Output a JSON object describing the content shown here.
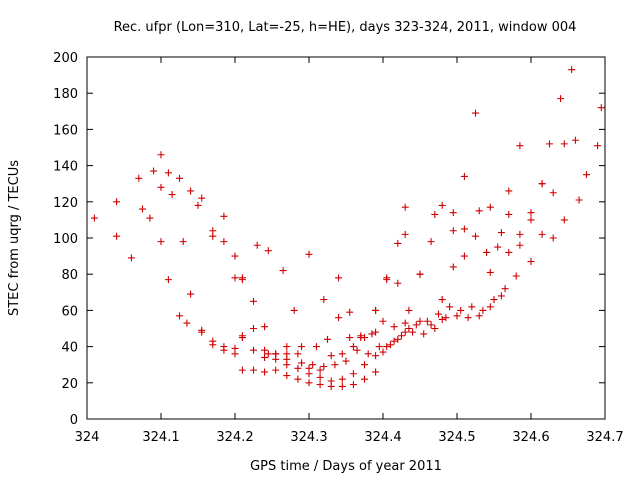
{
  "chart_data": {
    "type": "scatter",
    "title": "Rec. ufpr (Lon=310, Lat=-25, h=HE), days 323-324, 2011, window 004",
    "xlabel": "GPS time / Days of year 2011",
    "ylabel": "STEC from uqrg / TECUs",
    "xlim": [
      324,
      324.7
    ],
    "ylim": [
      0,
      200
    ],
    "xticks": [
      "324",
      "324.1",
      "324.2",
      "324.3",
      "324.4",
      "324.5",
      "324.6",
      "324.7"
    ],
    "yticks": [
      "0",
      "20",
      "40",
      "60",
      "80",
      "100",
      "120",
      "140",
      "160",
      "180",
      "200"
    ],
    "grid": false,
    "marker": "plus",
    "color": "#d00000",
    "series": [
      {
        "x": [
          324.01,
          324.04,
          324.06,
          324.075,
          324.09,
          324.1,
          324.11,
          324.125,
          324.14,
          324.155,
          324.17,
          324.185,
          324.2,
          324.21,
          324.23,
          324.245,
          324.265,
          324.3
        ],
        "y": [
          111,
          120,
          89,
          116,
          137,
          146,
          136,
          133,
          126,
          122,
          104,
          112,
          90,
          77,
          96,
          93,
          82,
          91
        ]
      },
      {
        "x": [
          324.04,
          324.07,
          324.085,
          324.1,
          324.115,
          324.13,
          324.15,
          324.17,
          324.185,
          324.2,
          324.21,
          324.225,
          324.245,
          324.28
        ],
        "y": [
          101,
          133,
          111,
          128,
          124,
          98,
          118,
          101,
          98,
          78,
          78,
          65,
          36,
          60
        ]
      },
      {
        "x": [
          324.1,
          324.11,
          324.125,
          324.14,
          324.155,
          324.17,
          324.185,
          324.2,
          324.21,
          324.225,
          324.24,
          324.255,
          324.27,
          324.29,
          324.31,
          324.325,
          324.34,
          324.355
        ],
        "y": [
          98,
          77,
          57,
          69,
          49,
          43,
          40,
          39,
          46,
          50,
          51,
          36,
          40,
          40,
          40,
          44,
          78,
          59
        ]
      },
      {
        "x": [
          324.135,
          324.155,
          324.17,
          324.185,
          324.2,
          324.21,
          324.225,
          324.24,
          324.255,
          324.27,
          324.285,
          324.3,
          324.315,
          324.33,
          324.345,
          324.36,
          324.375,
          324.39
        ],
        "y": [
          53,
          48,
          41,
          38,
          36,
          27,
          27,
          26,
          27,
          24,
          22,
          20,
          19,
          18,
          18,
          19,
          22,
          26
        ]
      },
      {
        "x": [
          324.21,
          324.225,
          324.24,
          324.255,
          324.27,
          324.285,
          324.3,
          324.315,
          324.33,
          324.345,
          324.36,
          324.375,
          324.39,
          324.4,
          324.415,
          324.43
        ],
        "y": [
          45,
          38,
          34,
          33,
          30,
          28,
          25,
          23,
          21,
          22,
          25,
          30,
          35,
          37,
          43,
          48
        ]
      },
      {
        "x": [
          324.24,
          324.255,
          324.27,
          324.285,
          324.3,
          324.315,
          324.33,
          324.345,
          324.36,
          324.375,
          324.39,
          324.405,
          324.42,
          324.435,
          324.45,
          324.465,
          324.48
        ],
        "y": [
          38,
          36,
          36,
          36,
          28,
          27,
          35,
          36,
          40,
          45,
          48,
          40,
          44,
          50,
          54,
          52,
          55
        ]
      },
      {
        "x": [
          324.27,
          324.29,
          324.305,
          324.32,
          324.335,
          324.35,
          324.365,
          324.38,
          324.395,
          324.41,
          324.425,
          324.44,
          324.455,
          324.47,
          324.485,
          324.5,
          324.515,
          324.53,
          324.545,
          324.56
        ],
        "y": [
          33,
          31,
          30,
          29,
          30,
          32,
          38,
          36,
          40,
          41,
          46,
          48,
          47,
          50,
          56,
          57,
          56,
          57,
          62,
          68
        ]
      },
      {
        "x": [
          324.32,
          324.34,
          324.355,
          324.37,
          324.385,
          324.4,
          324.415,
          324.43,
          324.445,
          324.46,
          324.475,
          324.49,
          324.505,
          324.52,
          324.535,
          324.55,
          324.565,
          324.58
        ],
        "y": [
          66,
          56,
          45,
          45,
          47,
          54,
          51,
          53,
          52,
          54,
          58,
          62,
          60,
          62,
          60,
          66,
          72,
          79
        ]
      },
      {
        "x": [
          324.37,
          324.39,
          324.405,
          324.42,
          324.435,
          324.45,
          324.465,
          324.48,
          324.495,
          324.51,
          324.525,
          324.54,
          324.555,
          324.57,
          324.585,
          324.6,
          324.615,
          324.63,
          324.645,
          324.665
        ],
        "y": [
          46,
          60,
          78,
          75,
          60,
          80,
          98,
          66,
          84,
          90,
          101,
          92,
          95,
          92,
          96,
          87,
          102,
          100,
          110,
          121
        ]
      },
      {
        "x": [
          324.39,
          324.405,
          324.42,
          324.43,
          324.45,
          324.47,
          324.48,
          324.495,
          324.51,
          324.53,
          324.545,
          324.56,
          324.57,
          324.585,
          324.6,
          324.615,
          324.63,
          324.645,
          324.66,
          324.675,
          324.69
        ],
        "y": [
          60,
          77,
          97,
          102,
          80,
          113,
          118,
          104,
          105,
          115,
          117,
          103,
          113,
          102,
          114,
          130,
          125,
          152,
          154,
          135,
          151
        ]
      },
      {
        "x": [
          324.43,
          324.495,
          324.51,
          324.525,
          324.545,
          324.57,
          324.585,
          324.6,
          324.615,
          324.625,
          324.64,
          324.655,
          324.695
        ],
        "y": [
          117,
          114,
          134,
          169,
          81,
          126,
          151,
          110,
          130,
          152,
          177,
          193,
          172
        ]
      }
    ]
  }
}
